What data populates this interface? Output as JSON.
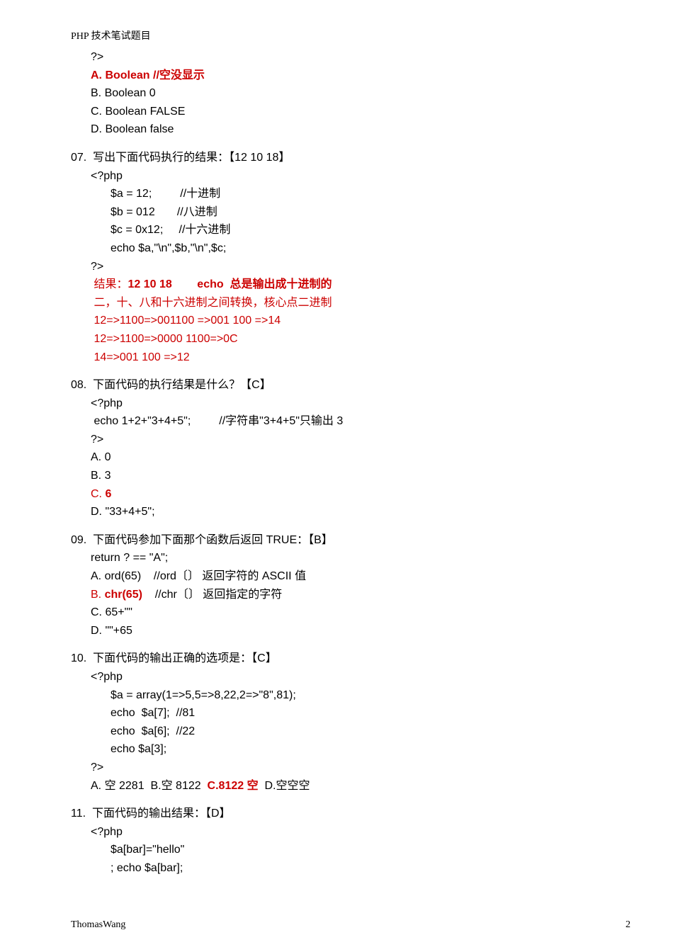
{
  "header": "PHP 技术笔试题目",
  "q06": {
    "close": "?>",
    "optA": "A. Boolean //空没显示",
    "optB": "B. Boolean 0",
    "optC": "C. Boolean FALSE",
    "optD": "D. Boolean false"
  },
  "q07": {
    "title": "07.  写出下面代码执行的结果：【12 10 18】",
    "open": "<?php",
    "l1a": "$a = 12;         //十进制",
    "l2a": "$b = 012       //八进制",
    "l3a": "$c = 0x12;     //十六进制",
    "l4": "echo $a,\"\\n\",$b,\"\\n\",$c;",
    "close": "?>",
    "res_pre": " 结果：",
    "res_bold": "12 10 18        echo  总是输出成十进制的",
    "note1": " 二，十、八和十六进制之间转换，核心点二进制",
    "note2": " 12=>1100=>001100 =>001 100 =>14",
    "note3": " 12=>1100=>0000 1100=>0C",
    "note4": " 14=>001 100 =>12"
  },
  "q08": {
    "title": "08.  下面代码的执行结果是什么？【C】",
    "open": "<?php",
    "l1": " echo 1+2+\"3+4+5\";         //字符串\"3+4+5\"只输出 3",
    "close": "?>",
    "optA": "A. 0",
    "optB": "B. 3",
    "optC_pre": "C. ",
    "optC_ans": "6",
    "optD": "D. \"33+4+5\";"
  },
  "q09": {
    "title": "09.  下面代码参加下面那个函数后返回 TRUE：【B】",
    "l1": "return ? == \"A\";",
    "optA": "A. ord(65)    //ord〔〕 返回字符的 ASCII 值",
    "optB_pre": "B. ",
    "optB_ans": "chr(65)",
    "optB_post": "    //chr〔〕 返回指定的字符",
    "optC": "C. 65+\"\"",
    "optD": "D. \"\"+65"
  },
  "q10": {
    "title": "10.  下面代码的输出正确的选项是：【C】",
    "open": "<?php",
    "l1": "$a = array(1=>5,5=>8,22,2=>\"8\",81);",
    "l2": "echo  $a[7];  //81",
    "l3": "echo  $a[6];  //22",
    "l4": "echo $a[3];",
    "close": "?>",
    "opts_pre": "A. 空 2281  B.空 8122  ",
    "opts_ans": "C.8122 空",
    "opts_post": "  D.空空空"
  },
  "q11": {
    "title": "11.  下面代码的输出结果：【D】",
    "open": "<?php",
    "l1": "$a[bar]=\"hello\"",
    "l2": "; echo $a[bar];"
  },
  "footer": {
    "author": "ThomasWang",
    "page": "2"
  }
}
